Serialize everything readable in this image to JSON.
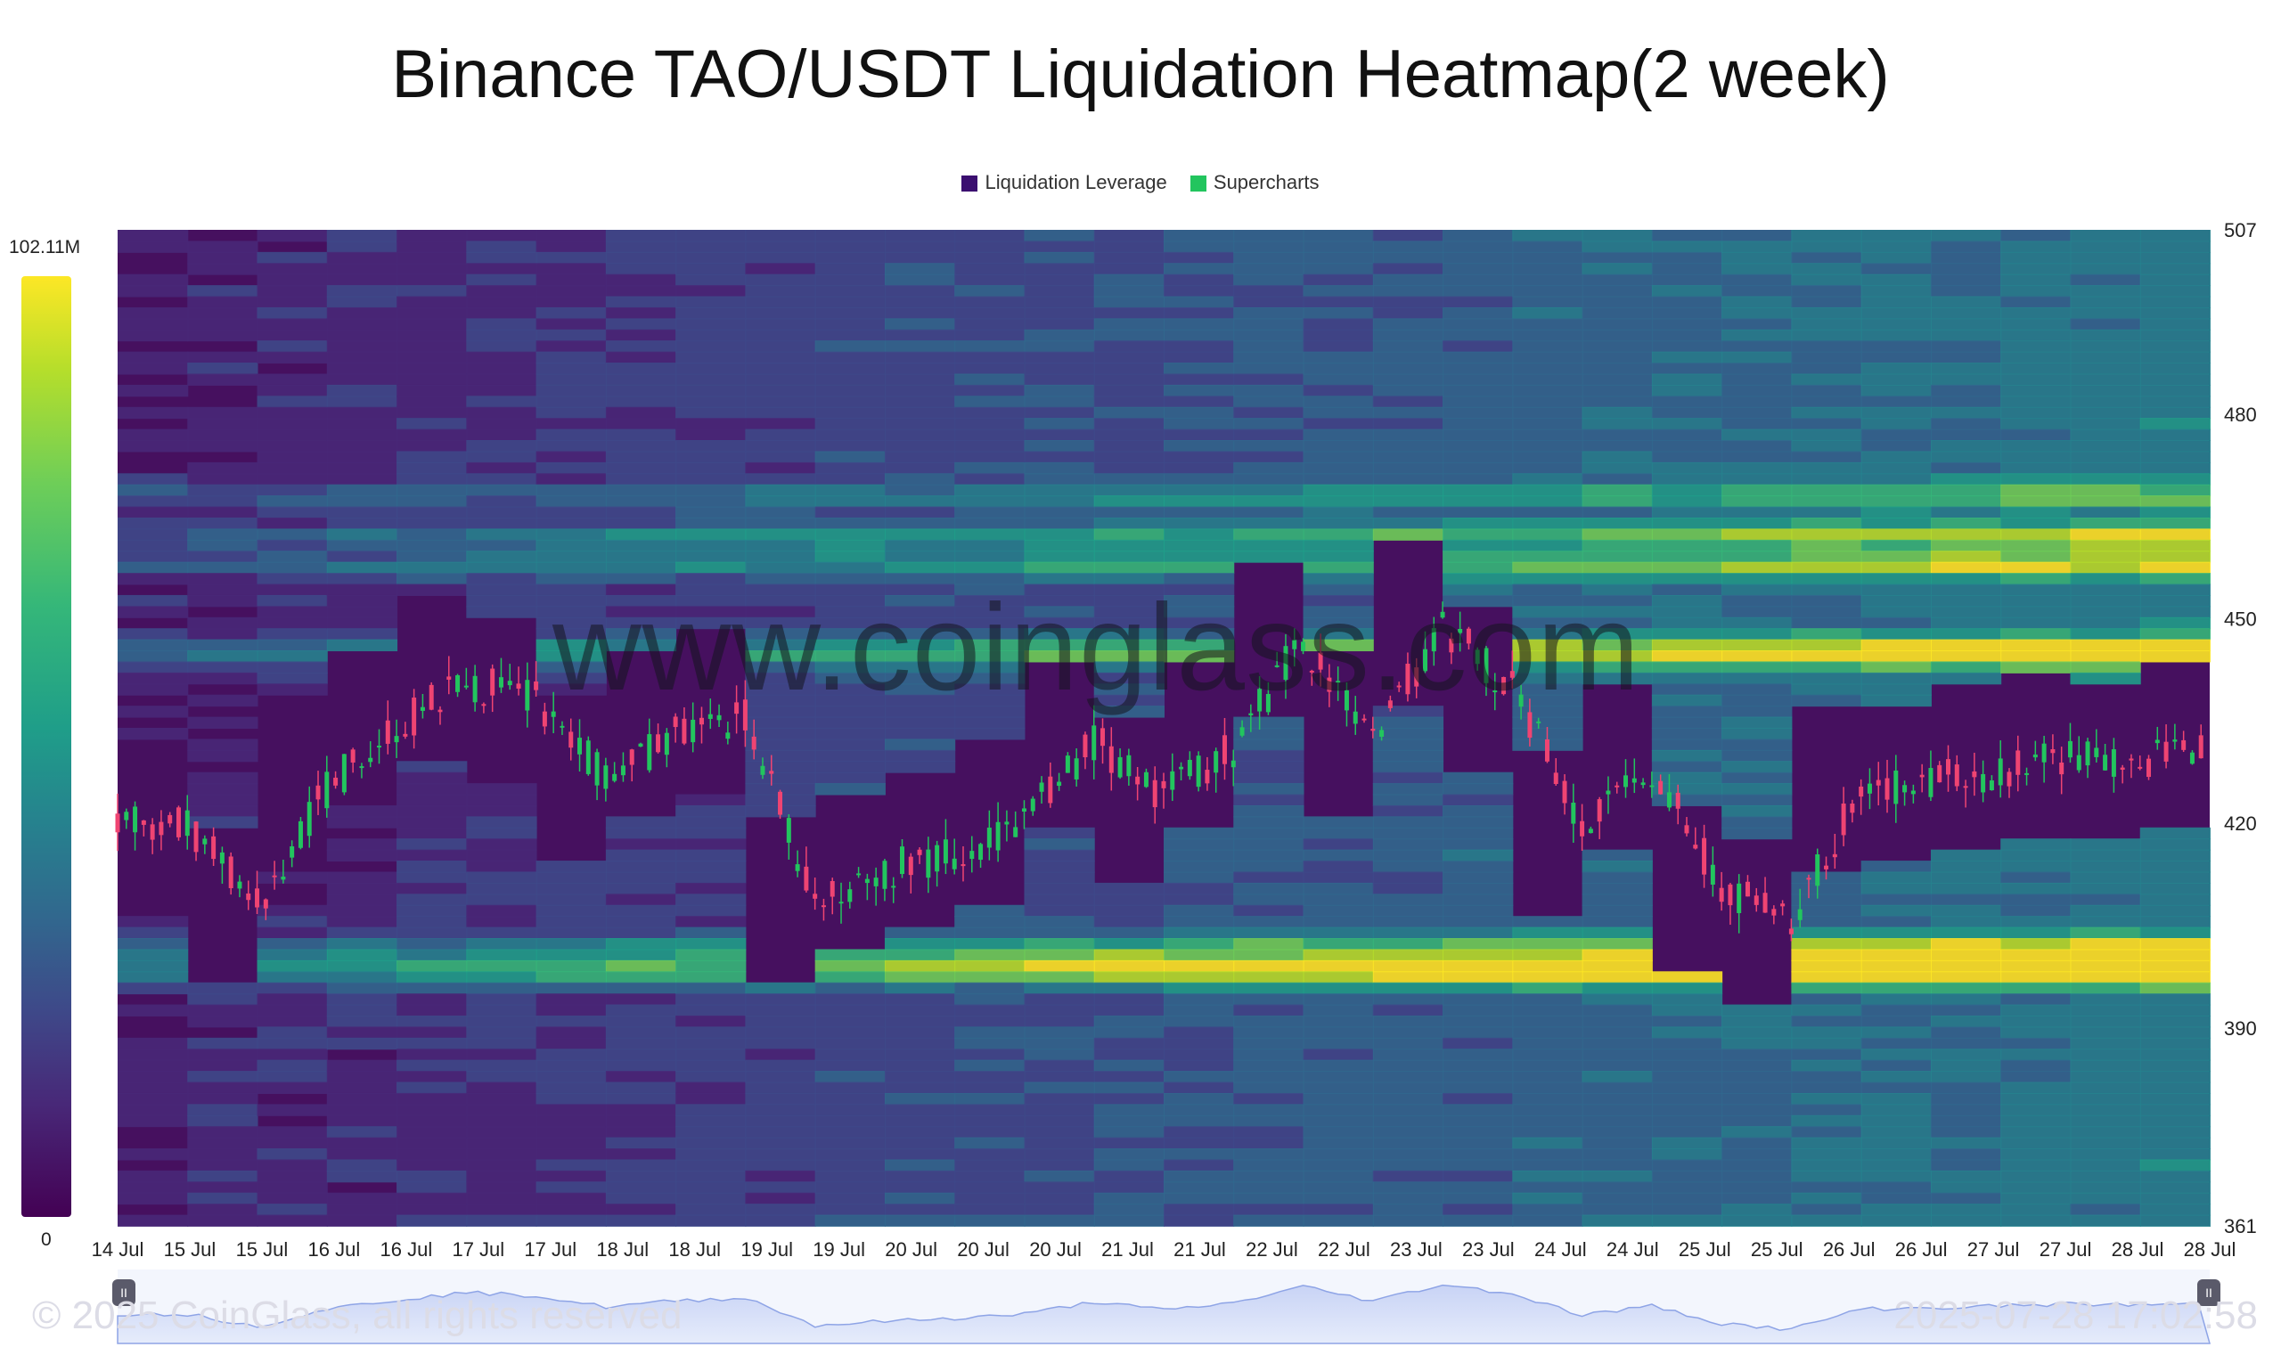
{
  "title": "Binance TAO/USDT Liquidation Heatmap(2 week)",
  "legend": [
    {
      "label": "Liquidation Leverage",
      "color": "#3b0f70"
    },
    {
      "label": "Supercharts",
      "color": "#22c55e"
    }
  ],
  "colorbar": {
    "max_label": "102.11M",
    "min_label": "0"
  },
  "watermark": "www.coinglass.com",
  "footer": {
    "copyright": "© 2025 CoinGlass, all rights reserved",
    "timestamp": "2025-07-28 17:02:58"
  },
  "chart_data": {
    "type": "heatmap",
    "title": "Binance TAO/USDT Liquidation Heatmap(2 week)",
    "y_axis": {
      "ticks": [
        507,
        480,
        450,
        420,
        390,
        361
      ],
      "ylim": [
        361,
        507
      ],
      "position": "right"
    },
    "x_axis": {
      "ticks": [
        "14 Jul",
        "15 Jul",
        "15 Jul",
        "16 Jul",
        "16 Jul",
        "17 Jul",
        "17 Jul",
        "18 Jul",
        "18 Jul",
        "19 Jul",
        "19 Jul",
        "20 Jul",
        "20 Jul",
        "20 Jul",
        "21 Jul",
        "21 Jul",
        "22 Jul",
        "22 Jul",
        "23 Jul",
        "23 Jul",
        "24 Jul",
        "24 Jul",
        "25 Jul",
        "25 Jul",
        "26 Jul",
        "26 Jul",
        "27 Jul",
        "27 Jul",
        "28 Jul",
        "28 Jul"
      ]
    },
    "price_series": {
      "name": "Supercharts",
      "x": [
        0,
        1,
        2,
        3,
        4,
        5,
        6,
        7,
        8,
        9,
        10,
        11,
        12,
        13,
        14,
        15,
        16,
        17,
        18,
        19,
        20,
        21,
        22,
        23,
        24,
        25,
        26,
        27,
        28,
        29
      ],
      "close": [
        420,
        408,
        425,
        434,
        441,
        438,
        427,
        433,
        436,
        409,
        413,
        416,
        420,
        432,
        424,
        431,
        447,
        433,
        449,
        440,
        419,
        428,
        411,
        405,
        425,
        426,
        428,
        430,
        429,
        431
      ]
    },
    "liquidation_bands": [
      {
        "price": 398,
        "intensity": 1.0
      },
      {
        "price": 400,
        "intensity": 0.55
      },
      {
        "price": 402,
        "intensity": 0.5
      },
      {
        "price": 444,
        "intensity": 0.55
      },
      {
        "price": 446,
        "intensity": 0.5
      },
      {
        "price": 458,
        "intensity": 0.65
      },
      {
        "price": 462,
        "intensity": 0.6
      },
      {
        "price": 468,
        "intensity": 0.45
      }
    ],
    "legend_position": "top-center",
    "grid": false
  }
}
